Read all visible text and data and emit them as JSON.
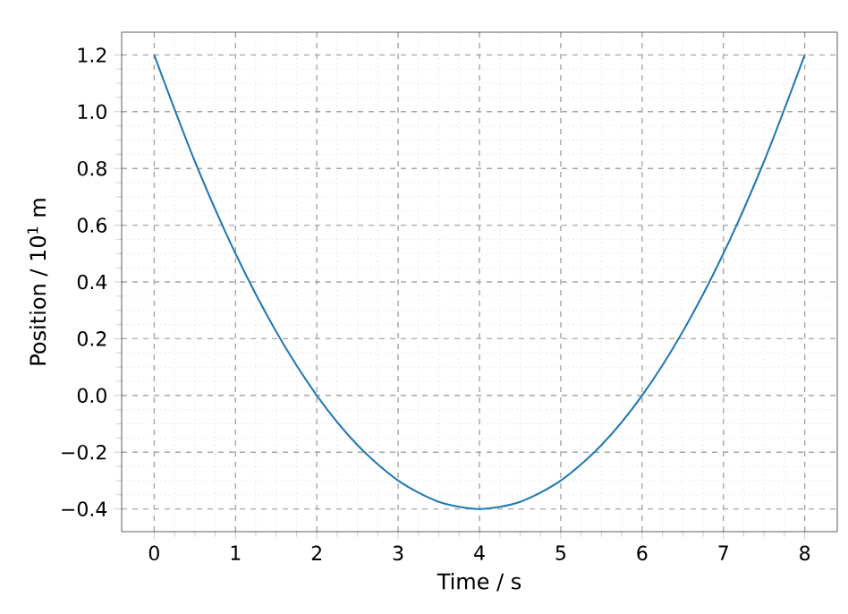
{
  "chart_data": {
    "type": "line",
    "xlabel": "Time /  s",
    "ylabel": "Position / 10$^{1}$ m",
    "x": [
      0,
      0.5,
      1,
      1.5,
      2,
      2.5,
      3,
      3.5,
      4,
      4.5,
      5,
      5.5,
      6,
      6.5,
      7,
      7.5,
      8
    ],
    "series": [
      {
        "color": "#1f77b4",
        "values": [
          1.2,
          0.825,
          0.5,
          0.225,
          0.0,
          -0.175,
          -0.3,
          -0.375,
          -0.4,
          -0.375,
          -0.3,
          -0.175,
          0.0,
          0.225,
          0.5,
          0.825,
          1.2
        ]
      }
    ],
    "xlim": [
      -0.4,
      8.4
    ],
    "ylim": [
      -0.48,
      1.28
    ],
    "xticks": [
      0,
      1,
      2,
      3,
      4,
      5,
      6,
      7,
      8
    ],
    "yticks": [
      {
        "value": -0.4,
        "label": "−0.4"
      },
      {
        "value": -0.2,
        "label": "−0.2"
      },
      "0.0",
      0.2,
      0.4,
      0.6,
      0.8,
      "1.0",
      1.2
    ],
    "grid": true,
    "marker": "none",
    "line_style": "solid"
  }
}
